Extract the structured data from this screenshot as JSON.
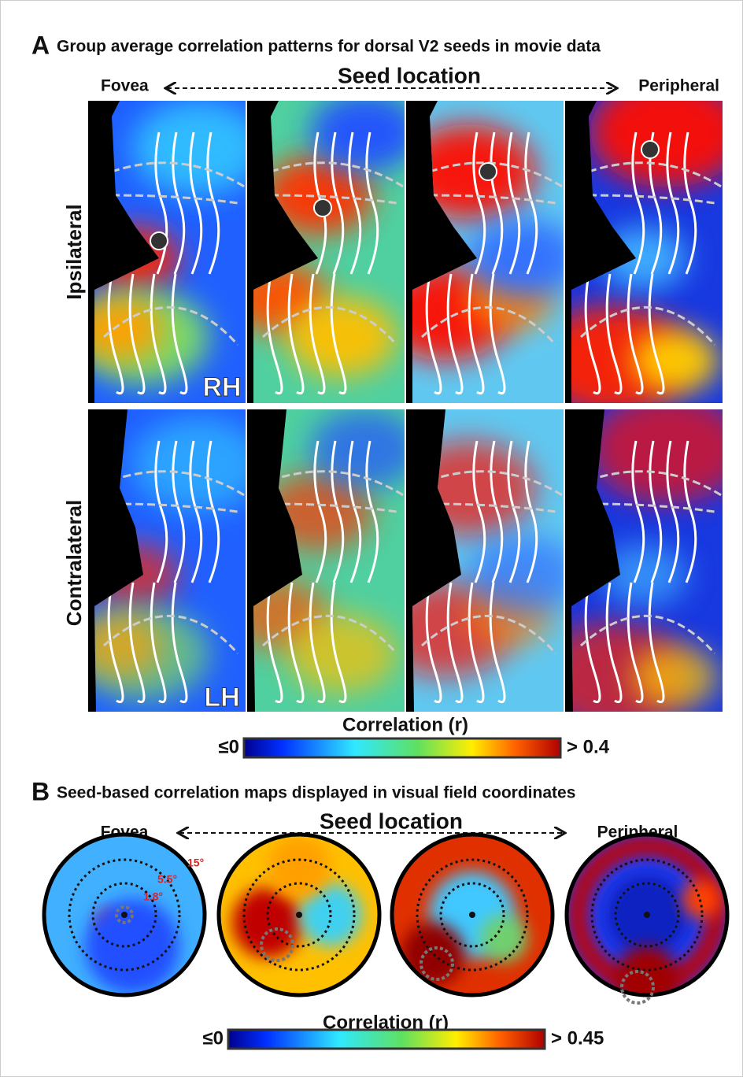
{
  "panel_a": {
    "letter": "A",
    "title": "Group average correlation patterns for dorsal V2 seeds in movie data",
    "fovea": "Fovea",
    "seed_location": "Seed location",
    "peripheral": "Peripheral",
    "rows": [
      "Ipsilateral",
      "Contralateral"
    ],
    "hemispheres": [
      "RH",
      "LH"
    ],
    "colorbar": {
      "label": "Correlation (r)",
      "min": "≤0",
      "max": "> 0.4"
    }
  },
  "panel_b": {
    "letter": "B",
    "title": "Seed-based correlation maps displayed in visual field coordinates",
    "fovea": "Fovea",
    "seed_location": "Seed location",
    "peripheral": "Peripheral",
    "eccentricities": [
      "15°",
      "5.5°",
      "1.8°"
    ],
    "colorbar": {
      "label": "Correlation (r)",
      "min": "≤0",
      "max": "> 0.45"
    }
  }
}
